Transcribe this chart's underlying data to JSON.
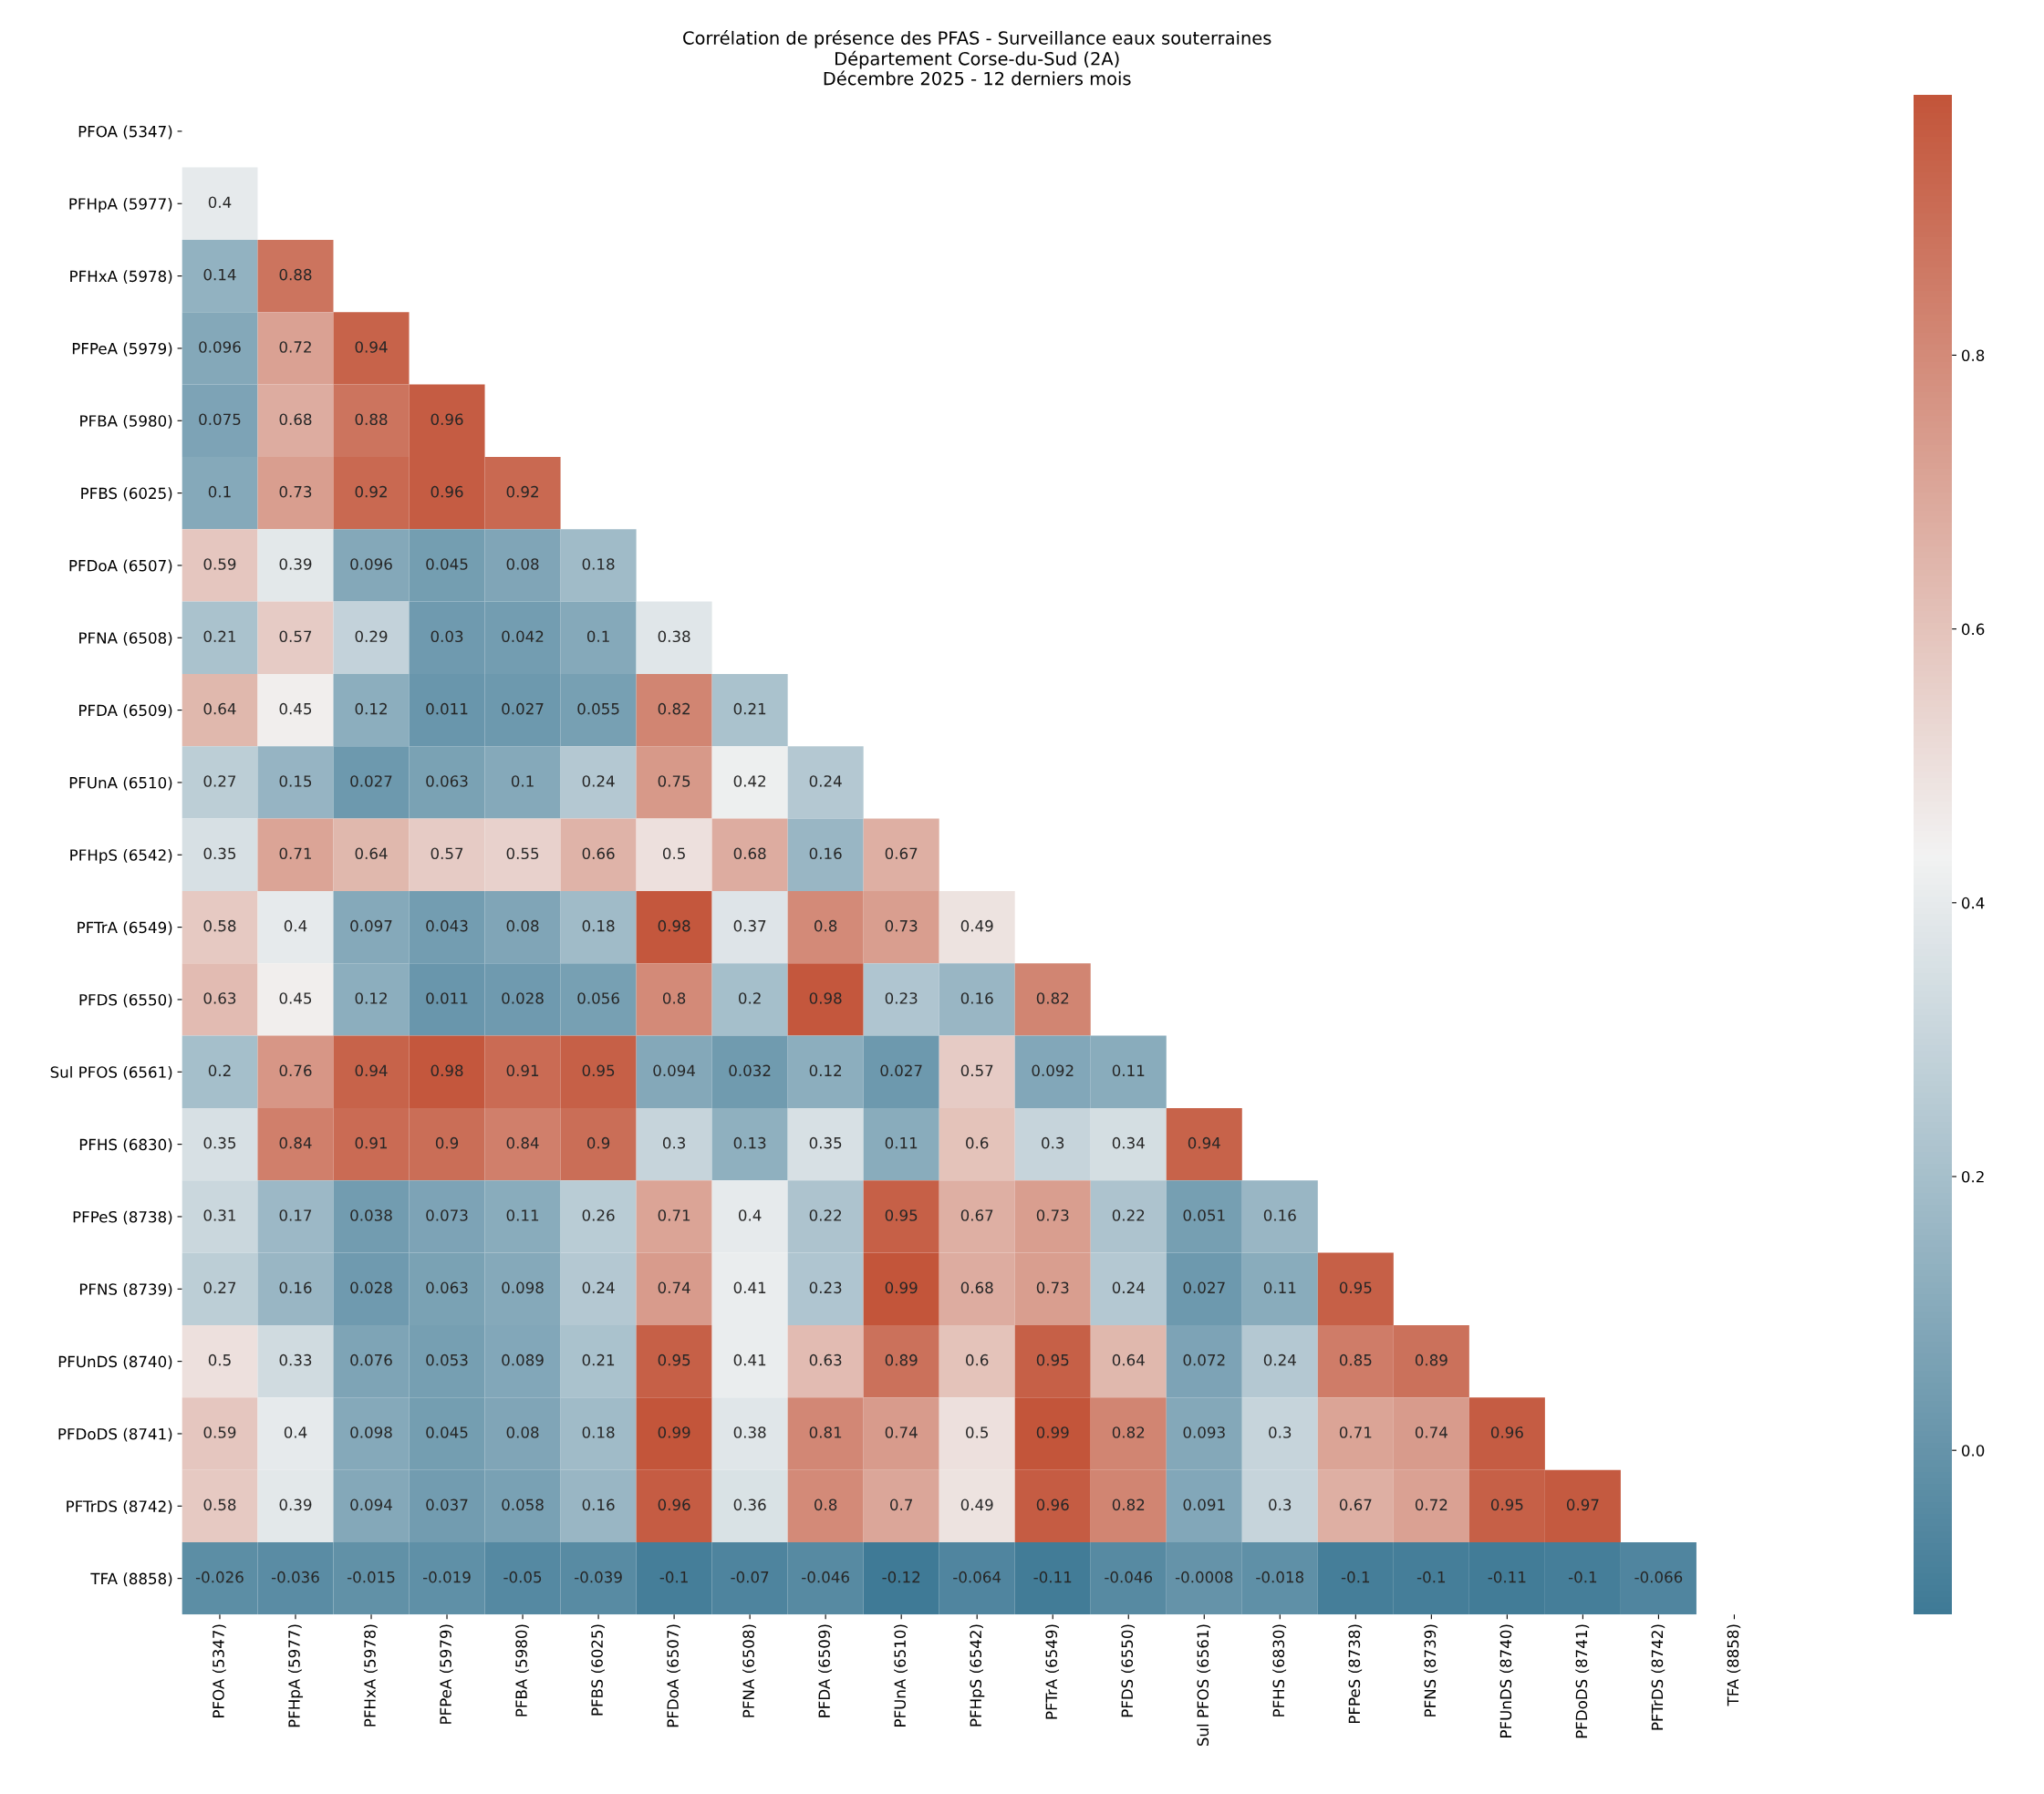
{
  "chart_data": {
    "type": "heatmap",
    "title": "Corrélation de présence des PFAS - Surveillance eaux souterraines\nDépartement Corse-du-Sud (2A)\nDécembre 2025 - 12 derniers mois",
    "categories": [
      "PFOA (5347)",
      "PFHpA (5977)",
      "PFHxA (5978)",
      "PFPeA (5979)",
      "PFBA (5980)",
      "PFBS (6025)",
      "PFDoA (6507)",
      "PFNA (6508)",
      "PFDA (6509)",
      "PFUnA (6510)",
      "PFHpS (6542)",
      "PFTrA (6549)",
      "PFDS (6550)",
      "Sul PFOS (6561)",
      "PFHS (6830)",
      "PFPeS (8738)",
      "PFNS (8739)",
      "PFUnDS (8740)",
      "PFDoDS (8741)",
      "PFTrDS (8742)",
      "TFA (8858)"
    ],
    "y_categories": [
      "PFOA (5347)",
      "PFHpA (5977)",
      "PFHxA (5978)",
      "PFPeA (5979)",
      "PFBA (5980)",
      "PFBS (6025)",
      "PFDoA (6507)",
      "PFNA (6508)",
      "PFDA (6509)",
      "PFUnA (6510)",
      "PFHpS (6542)",
      "PFTrA (6549)",
      "PFDS (6550)",
      "Sul PFOS (6561)",
      "PFHS (6830)",
      "PFPeS (8738)",
      "PFNS (8739)",
      "PFUnDS (8740)",
      "PFDoDS (8741)",
      "PFTrDS (8742)",
      "TFA (8858)"
    ],
    "cells": [
      [
        null,
        null,
        null,
        null,
        null,
        null,
        null,
        null,
        null,
        null,
        null,
        null,
        null,
        null,
        null,
        null,
        null,
        null,
        null,
        null,
        null
      ],
      [
        0.4,
        null,
        null,
        null,
        null,
        null,
        null,
        null,
        null,
        null,
        null,
        null,
        null,
        null,
        null,
        null,
        null,
        null,
        null,
        null,
        null
      ],
      [
        0.14,
        0.88,
        null,
        null,
        null,
        null,
        null,
        null,
        null,
        null,
        null,
        null,
        null,
        null,
        null,
        null,
        null,
        null,
        null,
        null,
        null
      ],
      [
        0.096,
        0.72,
        0.94,
        null,
        null,
        null,
        null,
        null,
        null,
        null,
        null,
        null,
        null,
        null,
        null,
        null,
        null,
        null,
        null,
        null,
        null
      ],
      [
        0.075,
        0.68,
        0.88,
        0.96,
        null,
        null,
        null,
        null,
        null,
        null,
        null,
        null,
        null,
        null,
        null,
        null,
        null,
        null,
        null,
        null,
        null
      ],
      [
        0.1,
        0.73,
        0.92,
        0.96,
        0.92,
        null,
        null,
        null,
        null,
        null,
        null,
        null,
        null,
        null,
        null,
        null,
        null,
        null,
        null,
        null,
        null
      ],
      [
        0.59,
        0.39,
        0.096,
        0.045,
        0.08,
        0.18,
        null,
        null,
        null,
        null,
        null,
        null,
        null,
        null,
        null,
        null,
        null,
        null,
        null,
        null,
        null
      ],
      [
        0.21,
        0.57,
        0.29,
        0.03,
        0.042,
        0.1,
        0.38,
        null,
        null,
        null,
        null,
        null,
        null,
        null,
        null,
        null,
        null,
        null,
        null,
        null,
        null
      ],
      [
        0.64,
        0.45,
        0.12,
        0.011,
        0.027,
        0.055,
        0.82,
        0.21,
        null,
        null,
        null,
        null,
        null,
        null,
        null,
        null,
        null,
        null,
        null,
        null,
        null
      ],
      [
        0.27,
        0.15,
        0.027,
        0.063,
        0.1,
        0.24,
        0.75,
        0.42,
        0.24,
        null,
        null,
        null,
        null,
        null,
        null,
        null,
        null,
        null,
        null,
        null,
        null
      ],
      [
        0.35,
        0.71,
        0.64,
        0.57,
        0.55,
        0.66,
        0.5,
        0.68,
        0.16,
        0.67,
        null,
        null,
        null,
        null,
        null,
        null,
        null,
        null,
        null,
        null,
        null
      ],
      [
        0.58,
        0.4,
        0.097,
        0.043,
        0.08,
        0.18,
        0.98,
        0.37,
        0.8,
        0.73,
        0.49,
        null,
        null,
        null,
        null,
        null,
        null,
        null,
        null,
        null,
        null
      ],
      [
        0.63,
        0.45,
        0.12,
        0.011,
        0.028,
        0.056,
        0.8,
        0.2,
        0.98,
        0.23,
        0.16,
        0.82,
        null,
        null,
        null,
        null,
        null,
        null,
        null,
        null,
        null
      ],
      [
        0.2,
        0.76,
        0.94,
        0.98,
        0.91,
        0.95,
        0.094,
        0.032,
        0.12,
        0.027,
        0.57,
        0.092,
        0.11,
        null,
        null,
        null,
        null,
        null,
        null,
        null,
        null
      ],
      [
        0.35,
        0.84,
        0.91,
        0.9,
        0.84,
        0.9,
        0.3,
        0.13,
        0.35,
        0.11,
        0.6,
        0.3,
        0.34,
        0.94,
        null,
        null,
        null,
        null,
        null,
        null,
        null
      ],
      [
        0.31,
        0.17,
        0.038,
        0.073,
        0.11,
        0.26,
        0.71,
        0.4,
        0.22,
        0.95,
        0.67,
        0.73,
        0.22,
        0.051,
        0.16,
        null,
        null,
        null,
        null,
        null,
        null
      ],
      [
        0.27,
        0.16,
        0.028,
        0.063,
        0.098,
        0.24,
        0.74,
        0.41,
        0.23,
        0.99,
        0.68,
        0.73,
        0.24,
        0.027,
        0.11,
        0.95,
        null,
        null,
        null,
        null,
        null
      ],
      [
        0.5,
        0.33,
        0.076,
        0.053,
        0.089,
        0.21,
        0.95,
        0.41,
        0.63,
        0.89,
        0.6,
        0.95,
        0.64,
        0.072,
        0.24,
        0.85,
        0.89,
        null,
        null,
        null,
        null
      ],
      [
        0.59,
        0.4,
        0.098,
        0.045,
        0.08,
        0.18,
        0.99,
        0.38,
        0.81,
        0.74,
        0.5,
        0.99,
        0.82,
        0.093,
        0.3,
        0.71,
        0.74,
        0.96,
        null,
        null,
        null
      ],
      [
        0.58,
        0.39,
        0.094,
        0.037,
        0.058,
        0.16,
        0.96,
        0.36,
        0.8,
        0.7,
        0.49,
        0.96,
        0.82,
        0.091,
        0.3,
        0.67,
        0.72,
        0.95,
        0.97,
        null,
        null
      ],
      [
        -0.026,
        -0.036,
        -0.015,
        -0.019,
        -0.05,
        -0.039,
        -0.1,
        -0.07,
        -0.046,
        -0.12,
        -0.064,
        -0.11,
        -0.046,
        -0.0008,
        -0.018,
        -0.1,
        -0.1,
        -0.11,
        -0.1,
        -0.066,
        null
      ]
    ],
    "data_labels": true,
    "colors": [
      "#3f7a96",
      "#f2f2f2",
      "#c3553a"
    ],
    "clim": [
      -0.12,
      0.99
    ],
    "cticks": [
      {
        "value": 0,
        "label": "0.0"
      },
      {
        "value": 0.2,
        "label": "0.2"
      },
      {
        "value": 0.4,
        "label": "0.4"
      },
      {
        "value": 0.6,
        "label": "0.6"
      },
      {
        "value": 0.8,
        "label": "0.8"
      }
    ]
  }
}
